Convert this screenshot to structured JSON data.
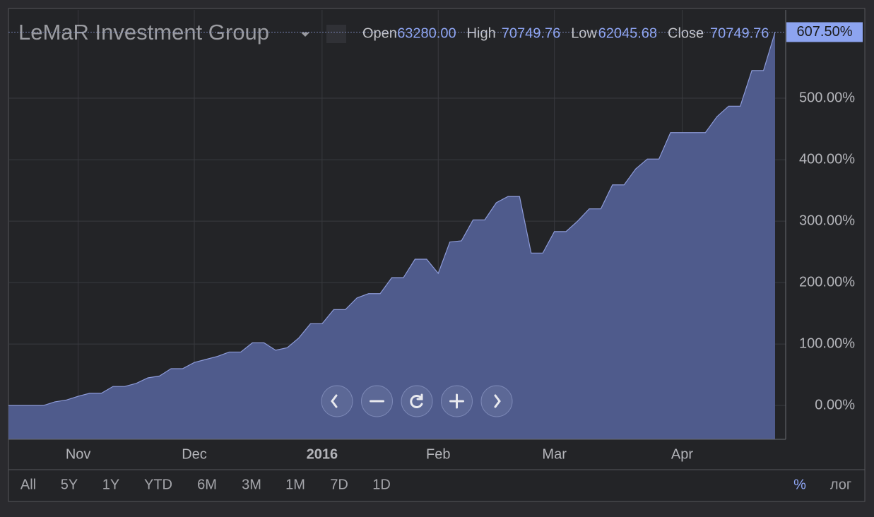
{
  "chart_data": {
    "type": "area",
    "title": "LeMaR Investment Group",
    "ohlc": [
      {
        "label": "Open",
        "value": "63280.00"
      },
      {
        "label": "High",
        "value": "70749.76"
      },
      {
        "label": "Low",
        "value": "62045.68"
      },
      {
        "label": "Close",
        "value": "70749.76"
      }
    ],
    "categories": [
      null,
      null,
      null,
      null,
      null,
      null,
      "Nov",
      null,
      null,
      null,
      null,
      null,
      null,
      null,
      null,
      null,
      "Dec",
      null,
      null,
      null,
      null,
      null,
      null,
      null,
      null,
      null,
      null,
      "2016",
      null,
      null,
      null,
      null,
      null,
      null,
      null,
      null,
      null,
      "Feb",
      null,
      null,
      null,
      null,
      null,
      null,
      null,
      null,
      null,
      "Mar",
      null,
      null,
      null,
      null,
      null,
      null,
      null,
      null,
      null,
      null,
      "Apr",
      null,
      null,
      null,
      null,
      null,
      null,
      null,
      null
    ],
    "values": [
      0,
      0,
      0,
      0,
      6,
      9,
      15,
      20,
      20,
      31,
      31,
      36,
      45,
      48,
      60,
      60,
      70,
      75,
      80,
      87,
      87,
      102,
      102,
      90,
      94,
      110,
      133,
      133,
      156,
      156,
      175,
      182,
      182,
      208,
      208,
      238,
      238,
      215,
      266,
      268,
      302,
      302,
      330,
      340,
      340,
      248,
      248,
      283,
      283,
      300,
      320,
      320,
      359,
      359,
      385,
      401,
      401,
      444,
      444,
      444,
      444,
      470,
      487,
      487,
      545,
      545,
      607.5
    ],
    "value_labels": [
      null,
      null,
      null,
      null,
      null,
      null,
      null,
      null,
      null,
      null,
      null,
      null,
      null,
      null,
      null,
      null,
      null,
      null,
      null,
      null,
      null,
      null,
      null,
      null,
      null,
      null,
      null,
      null,
      null,
      null,
      null,
      null,
      null,
      null,
      null,
      null,
      null,
      null,
      null,
      null,
      null,
      null,
      null,
      null,
      null,
      null,
      null,
      null,
      null,
      null,
      null,
      null,
      null,
      null,
      null,
      null,
      null,
      null,
      null,
      null,
      null,
      null,
      null,
      null,
      null,
      null,
      "607.50%"
    ],
    "color": "#4f5b8c",
    "line_color": "#8d9bd9",
    "ylim": [
      -55,
      643.7
    ],
    "yticks": [
      {
        "value": 0,
        "label": "0.00%"
      },
      {
        "value": 100,
        "label": "100.00%"
      },
      {
        "value": 200,
        "label": "200.00%"
      },
      {
        "value": 300,
        "label": "300.00%"
      },
      {
        "value": 400,
        "label": "400.00%"
      },
      {
        "value": 500,
        "label": "500.00%"
      }
    ],
    "grid": true,
    "ranges": [
      "All",
      "5Y",
      "1Y",
      "YTD",
      "6M",
      "3M",
      "1M",
      "7D",
      "1D"
    ],
    "modes": [
      "%",
      "лог"
    ]
  }
}
